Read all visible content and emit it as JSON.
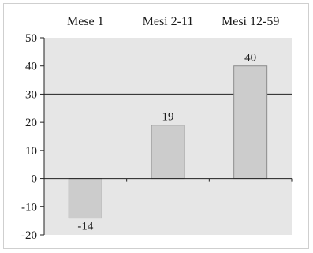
{
  "chart_data": {
    "type": "bar",
    "categories": [
      "Mese 1",
      "Mesi 2-11",
      "Mesi 12-59"
    ],
    "values": [
      -14,
      19,
      40
    ],
    "data_labels": [
      "-14",
      "19",
      "40"
    ],
    "ylim": [
      -20,
      50
    ],
    "yticks": [
      50,
      40,
      30,
      20,
      10,
      0,
      -10,
      -20
    ],
    "reference_line": 30,
    "category_labels_position": "top",
    "grid": false,
    "colors": {
      "plot_background": "#e6e6e6",
      "bar_fill": "#cccccc",
      "bar_stroke": "#8c8c8c",
      "axis": "#222222"
    }
  }
}
